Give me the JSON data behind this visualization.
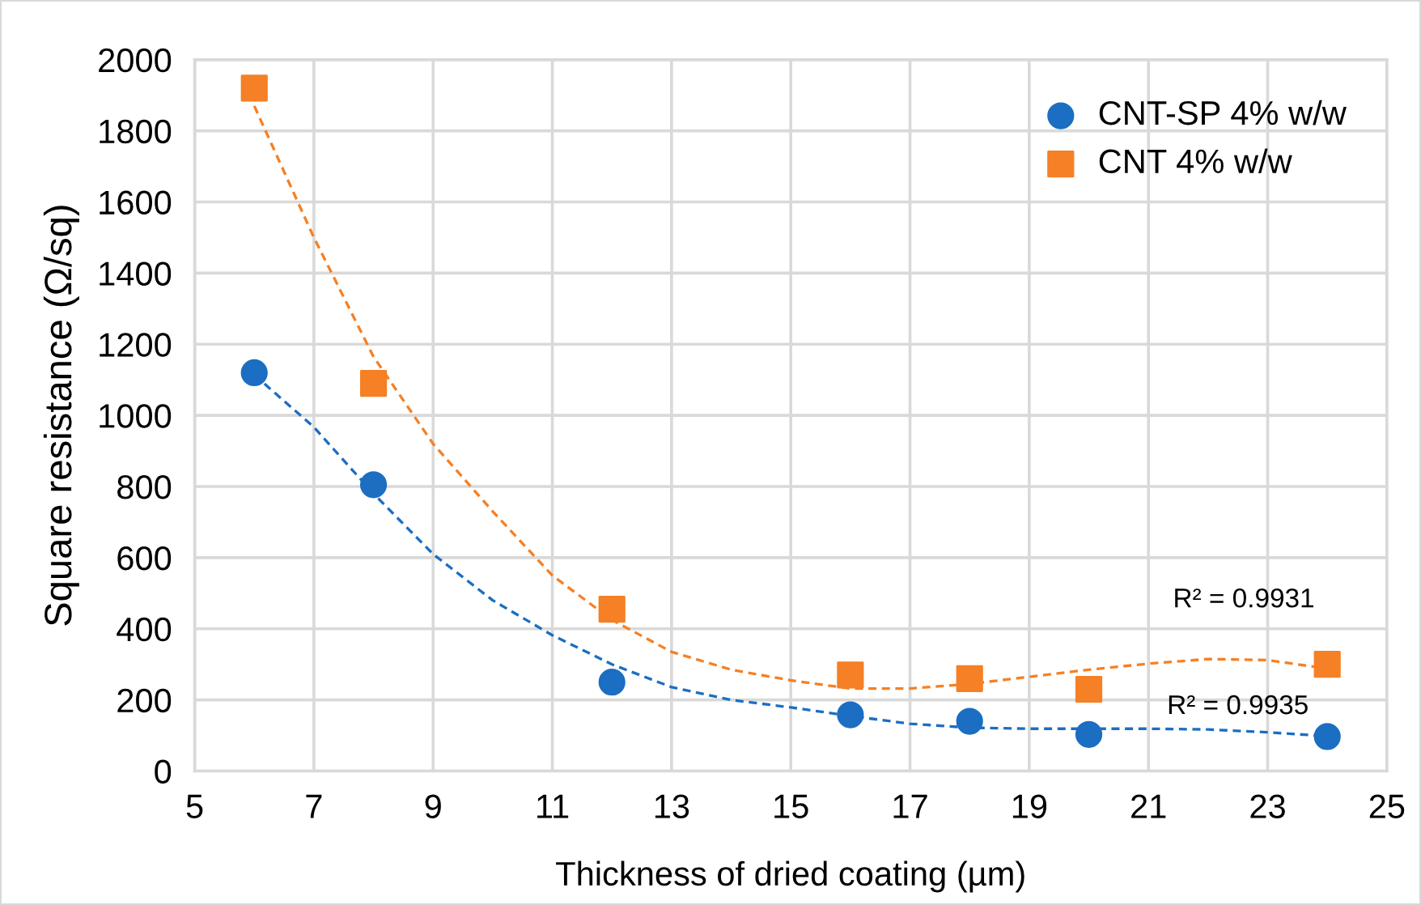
{
  "chart_data": {
    "type": "scatter",
    "xlabel": "Thickness of dried coating (µm)",
    "ylabel": "Square resistance (Ω/sq)",
    "xlim": [
      5,
      25
    ],
    "xticks": [
      5,
      7,
      9,
      11,
      13,
      15,
      17,
      19,
      21,
      23,
      25
    ],
    "ylim": [
      0,
      2000
    ],
    "yticks": [
      0,
      200,
      400,
      600,
      800,
      1000,
      1200,
      1400,
      1600,
      1800,
      2000
    ],
    "grid": true,
    "legend": "top right",
    "series": [
      {
        "name": "CNT-SP 4% w/w",
        "marker": "circle",
        "color": "#1b6ec2",
        "x": [
          6,
          8,
          12,
          16,
          18,
          20,
          24
        ],
        "values": [
          1120,
          805,
          250,
          158,
          140,
          103,
          97
        ]
      },
      {
        "name": "CNT 4% w/w",
        "marker": "square",
        "color": "#f58025",
        "x": [
          6,
          8,
          12,
          16,
          18,
          20,
          24
        ],
        "values": [
          1920,
          1090,
          455,
          270,
          260,
          230,
          300
        ]
      },
      {
        "type": "line",
        "line_style": "dashed",
        "color": "#1b6ec2",
        "x": [
          6,
          7,
          8,
          9,
          10,
          11,
          12,
          13,
          14,
          15,
          16,
          17,
          18,
          19,
          20,
          21,
          22,
          23,
          24
        ],
        "values": [
          1114,
          967,
          780,
          610,
          480,
          382,
          300,
          236,
          200,
          179,
          155,
          133,
          122,
          119,
          119,
          119,
          117,
          109,
          98
        ]
      },
      {
        "type": "line",
        "line_style": "dashed",
        "color": "#f58025",
        "x": [
          6,
          7,
          8,
          9,
          10,
          11,
          12,
          13,
          14,
          15,
          16,
          17,
          18,
          19,
          20,
          21,
          22,
          23,
          24
        ],
        "values": [
          1870,
          1500,
          1165,
          920,
          730,
          550,
          425,
          335,
          285,
          255,
          232,
          232,
          245,
          265,
          285,
          302,
          315,
          312,
          288
        ]
      }
    ],
    "annotations": [
      "R² = 0.9931",
      "R² = 0.9935"
    ]
  }
}
